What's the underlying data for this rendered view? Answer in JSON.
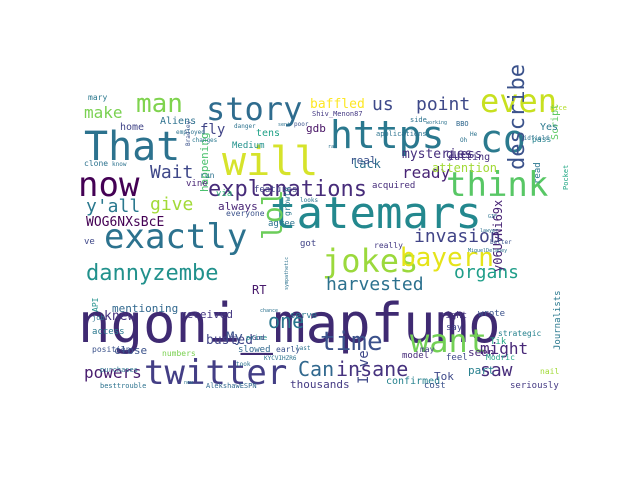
{
  "canvas": {
    "background": "#ffffff"
  },
  "words": [
    {
      "text": "ngoni_mapfumo",
      "color": "#3f2a72"
    },
    {
      "text": "tatemars",
      "color": "#23888e"
    },
    {
      "text": "https",
      "color": "#2a788e"
    },
    {
      "text": "co",
      "color": "#2b7a8e"
    },
    {
      "text": "That",
      "color": "#2c728e"
    },
    {
      "text": "will",
      "color": "#d6e32b"
    },
    {
      "text": "story",
      "color": "#2f6c8e"
    },
    {
      "text": "even",
      "color": "#c8e020"
    },
    {
      "text": "now",
      "color": "#440154"
    },
    {
      "text": "exactly",
      "color": "#2c728e"
    },
    {
      "text": "think",
      "color": "#58c765"
    },
    {
      "text": "twitter",
      "color": "#433e85"
    },
    {
      "text": "jokes",
      "color": "#9bd93c"
    },
    {
      "text": "want",
      "color": "#73d056"
    },
    {
      "text": "man",
      "color": "#7fd34e"
    },
    {
      "text": "time",
      "color": "#3b518b"
    },
    {
      "text": "lol",
      "color": "#6ccd5a"
    },
    {
      "text": "bayern",
      "color": "#e5e419"
    },
    {
      "text": "dannyzembe",
      "color": "#21918c"
    },
    {
      "text": "explanations",
      "color": "#472c7a"
    },
    {
      "text": "describe",
      "color": "#3b528b"
    },
    {
      "text": "one",
      "color": "#2a768e"
    },
    {
      "text": "organs",
      "color": "#1f9e89"
    },
    {
      "text": "insane",
      "color": "#46327e"
    },
    {
      "text": "Can",
      "color": "#31688e"
    },
    {
      "text": "point",
      "color": "#3e4989"
    },
    {
      "text": "harvested",
      "color": "#2c718e"
    },
    {
      "text": "invasion",
      "color": "#414487"
    },
    {
      "text": "us",
      "color": "#3e4989"
    },
    {
      "text": "give",
      "color": "#a2da37"
    },
    {
      "text": "y'all",
      "color": "#2a788e"
    },
    {
      "text": "might",
      "color": "#482878"
    },
    {
      "text": "saw",
      "color": "#472c7a"
    },
    {
      "text": "Wait",
      "color": "#3f4889"
    },
    {
      "text": "powers",
      "color": "#481c6e"
    },
    {
      "text": "make",
      "color": "#7ad151"
    },
    {
      "text": "ready",
      "color": "#482475"
    },
    {
      "text": "WOG6NXsBcE",
      "color": "#440154"
    },
    {
      "text": "knew",
      "color": "#46337f"
    },
    {
      "text": "mysteries",
      "color": "#472f7d"
    },
    {
      "text": "baffled",
      "color": "#fde725"
    },
    {
      "text": "fly",
      "color": "#414487"
    },
    {
      "text": "My",
      "color": "#3b528b"
    },
    {
      "text": "I've",
      "color": "#3f4889"
    },
    {
      "text": "y06UvNi69x",
      "color": "#482475"
    },
    {
      "text": "busted",
      "color": "#414487"
    },
    {
      "text": "received",
      "color": "#453882"
    },
    {
      "text": "always",
      "color": "#482475"
    },
    {
      "text": "mentioning",
      "color": "#31688e"
    },
    {
      "text": "gdb",
      "color": "#471365"
    },
    {
      "text": "lack",
      "color": "#2d708e"
    },
    {
      "text": "guess",
      "color": "#46327e"
    },
    {
      "text": "close",
      "color": "#3b528b"
    },
    {
      "text": "thousands",
      "color": "#443a83"
    },
    {
      "text": "attention",
      "color": "#a2da37"
    },
    {
      "text": "happening",
      "color": "#4ac16d"
    },
    {
      "text": "confirmed",
      "color": "#26828e"
    },
    {
      "text": "seen",
      "color": "#482878"
    },
    {
      "text": "RT",
      "color": "#481a6c"
    },
    {
      "text": "part",
      "color": "#27808e"
    },
    {
      "text": "Tok",
      "color": "#3e4989"
    },
    {
      "text": "cutting",
      "color": "#46327e"
    },
    {
      "text": "Script",
      "color": "#5ec962"
    },
    {
      "text": "home",
      "color": "#414487"
    },
    {
      "text": "Aliens",
      "color": "#2d708e"
    },
    {
      "text": "real",
      "color": "#3b528b"
    },
    {
      "text": "Yes",
      "color": "#2a788e"
    },
    {
      "text": "tens",
      "color": "#1fa187"
    },
    {
      "text": "features",
      "color": "#414487"
    },
    {
      "text": "acquired",
      "color": "#472d7b"
    },
    {
      "text": "Medium",
      "color": "#21918c"
    },
    {
      "text": "vine",
      "color": "#482475"
    },
    {
      "text": "via",
      "color": "#35b779"
    },
    {
      "text": "everyone",
      "color": "#3b528b"
    },
    {
      "text": "agree",
      "color": "#2c728e"
    },
    {
      "text": "ve",
      "color": "#3f4889"
    },
    {
      "text": "Tik",
      "color": "#22a884"
    },
    {
      "text": "growth",
      "color": "#2a788e"
    },
    {
      "text": "really",
      "color": "#443983"
    },
    {
      "text": "got",
      "color": "#414487"
    },
    {
      "text": "read",
      "color": "#2a768e"
    },
    {
      "text": "say",
      "color": "#414487"
    },
    {
      "text": "wrote",
      "color": "#3b528b"
    },
    {
      "text": "right",
      "color": "#46327e"
    },
    {
      "text": "strategic",
      "color": "#26828e"
    },
    {
      "text": "model",
      "color": "#472c7a"
    },
    {
      "text": "feel",
      "color": "#3f4889"
    },
    {
      "text": "may",
      "color": "#433e85"
    },
    {
      "text": "serve",
      "color": "#2a788e"
    },
    {
      "text": "early",
      "color": "#3b528b"
    },
    {
      "text": "slowed",
      "color": "#31688e"
    },
    {
      "text": "Modric",
      "color": "#20a386"
    },
    {
      "text": "cost",
      "color": "#3b528b"
    },
    {
      "text": "seriously",
      "color": "#443983"
    },
    {
      "text": "Journalists",
      "color": "#2a788e"
    },
    {
      "text": "besttrouble",
      "color": "#2c728e"
    },
    {
      "text": "AlekshawESPN",
      "color": "#31688e"
    },
    {
      "text": "numbers",
      "color": "#7ad151"
    },
    {
      "text": "access",
      "color": "#2a788e"
    },
    {
      "text": "position",
      "color": "#3b528b"
    },
    {
      "text": "API",
      "color": "#21918c"
    },
    {
      "text": "job",
      "color": "#2c728e"
    },
    {
      "text": "clone",
      "color": "#2c728e"
    },
    {
      "text": "mary",
      "color": "#2a788e"
    },
    {
      "text": "purchases",
      "color": "#2c728e"
    },
    {
      "text": "employed",
      "color": "#2c728e"
    },
    {
      "text": "changes",
      "color": "#2a788e"
    },
    {
      "text": "run",
      "color": "#2c728e"
    },
    {
      "text": "danger",
      "color": "#2c728e"
    },
    {
      "text": "poor",
      "color": "#3b528b"
    },
    {
      "text": "applications",
      "color": "#2c728e"
    },
    {
      "text": "Shiv_Menon87",
      "color": "#443983"
    },
    {
      "text": "side",
      "color": "#2c728e"
    },
    {
      "text": "BBO",
      "color": "#31688e"
    },
    {
      "text": "pass",
      "color": "#26828e"
    },
    {
      "text": "Pocket",
      "color": "#22a884"
    },
    {
      "text": "midfield",
      "color": "#2c728e"
    },
    {
      "text": "better",
      "color": "#3b528b"
    },
    {
      "text": "prime",
      "color": "#21918c"
    },
    {
      "text": "God",
      "color": "#414487"
    },
    {
      "text": "last",
      "color": "#2c728e"
    },
    {
      "text": "took",
      "color": "#2c728e"
    },
    {
      "text": "nail",
      "color": "#a2da37"
    },
    {
      "text": "Oh",
      "color": "#2c728e"
    },
    {
      "text": "He",
      "color": "#2c728e"
    },
    {
      "text": "looks",
      "color": "#2c728e"
    },
    {
      "text": "know",
      "color": "#2c728e"
    },
    {
      "text": "KYCVIHZR6",
      "color": "#2c728e"
    },
    {
      "text": "Bradley",
      "color": "#3b528b"
    },
    {
      "text": "working",
      "color": "#2c728e"
    },
    {
      "text": "new",
      "color": "#2c728e"
    },
    {
      "text": "MiguelDelaney",
      "color": "#2c728e"
    },
    {
      "text": "lawyer",
      "color": "#2c728e"
    },
    {
      "text": "sympathetic",
      "color": "#2c728e"
    },
    {
      "text": "GIF",
      "color": "#2c728e"
    },
    {
      "text": "rac",
      "color": "#2c728e"
    },
    {
      "text": "nice",
      "color": "#b5de2b"
    },
    {
      "text": "sent",
      "color": "#2c728e"
    },
    {
      "text": "chance",
      "color": "#2c728e"
    }
  ]
}
